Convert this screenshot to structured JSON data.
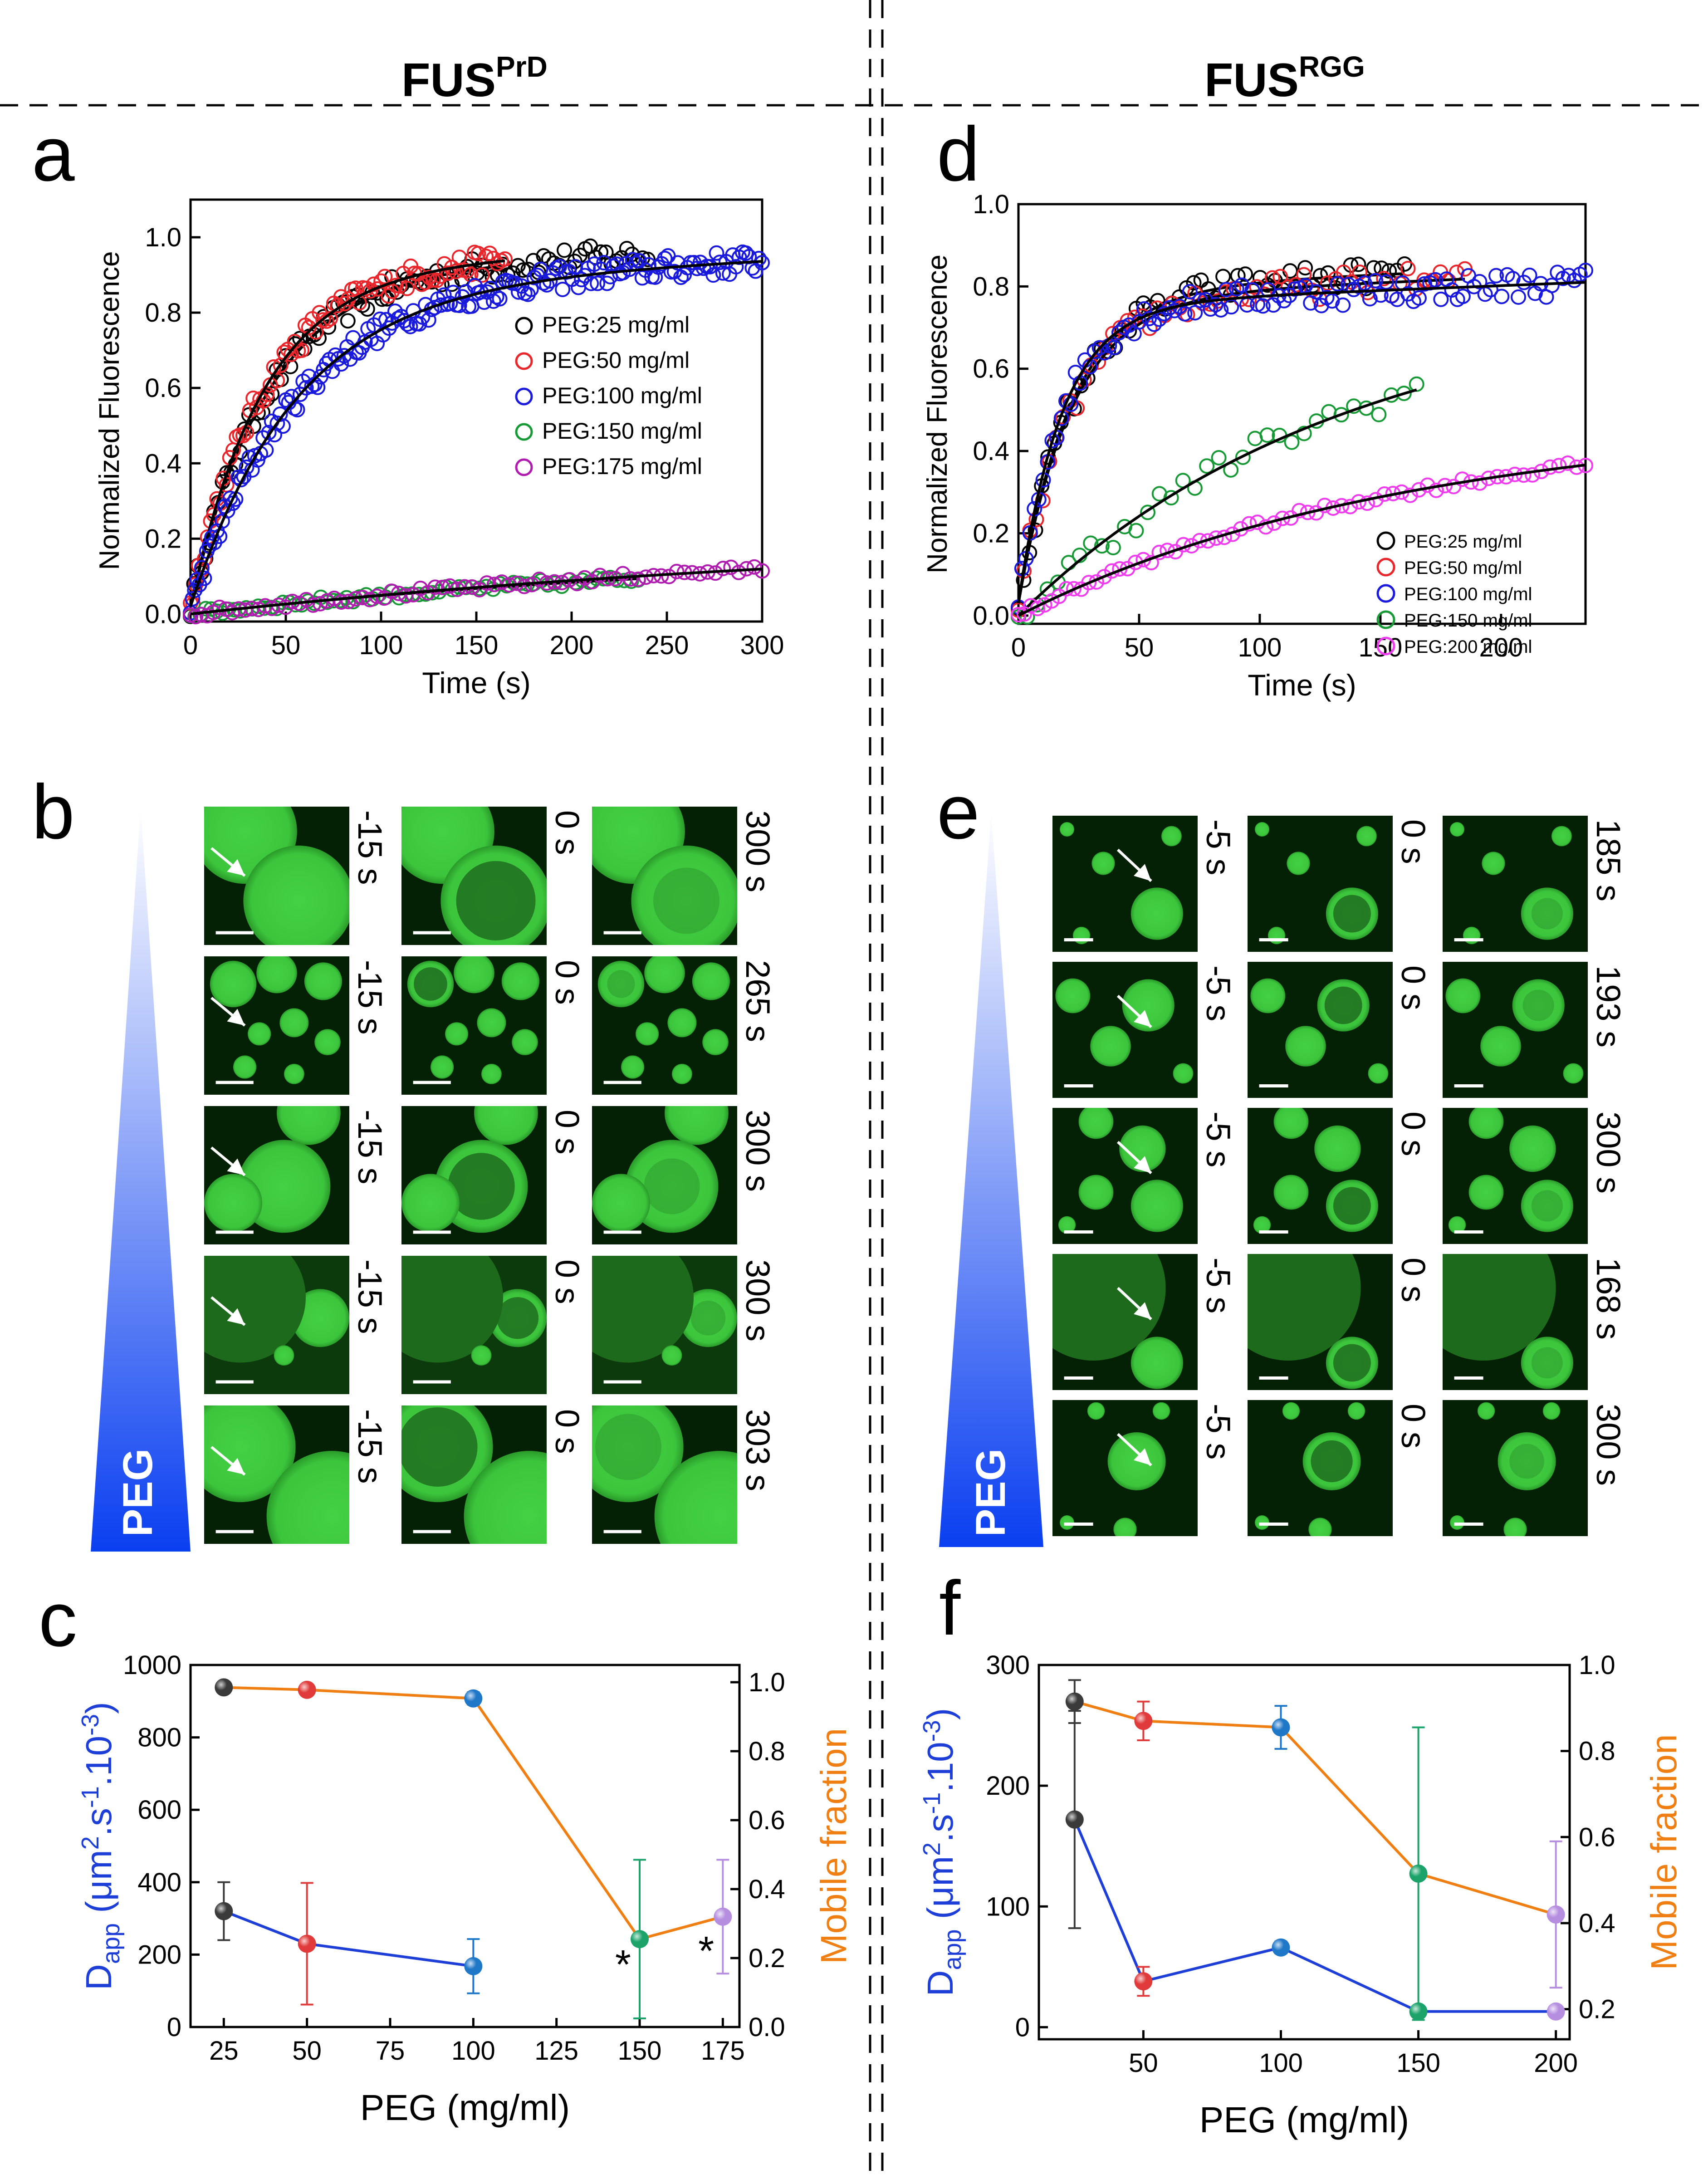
{
  "header": {
    "left_base": "FUS",
    "left_sup": "PrD",
    "right_base": "FUS",
    "right_sup": "RGG"
  },
  "panel_labels": {
    "a": "a",
    "b": "b",
    "c": "c",
    "d": "d",
    "e": "e",
    "f": "f"
  },
  "colors": {
    "black": "#000000",
    "red": "#e8262b",
    "blue": "#1a1adc",
    "green": "#179a35",
    "magenta_a": "#b01cb0",
    "magenta_d": "#ee3cee",
    "dapp_blue": "#1d3fd8",
    "mobile_orange": "#f07f13",
    "c_black": "#3a3a3a",
    "c_red": "#e03a3a",
    "c_blue": "#1f77c8",
    "c_green": "#1ba36a",
    "c_violet": "#b58ee0",
    "micro_green": "#3fd23f",
    "micro_bg": "#062606"
  },
  "chart_data": [
    {
      "id": "a",
      "type": "scatter",
      "xlabel": "Time (s)",
      "ylabel": "Normalized Fluorescence",
      "xlim": [
        0,
        300
      ],
      "ylim": [
        -0.02,
        1.1
      ],
      "xticks": [
        0,
        50,
        100,
        150,
        200,
        250,
        300
      ],
      "yticks": [
        0.0,
        0.2,
        0.4,
        0.6,
        0.8,
        1.0
      ],
      "xtick_labels": [
        "0",
        "50",
        "100",
        "150",
        "200",
        "250",
        "300"
      ],
      "ytick_labels": [
        "0.0",
        "0.2",
        "0.4",
        "0.6",
        "0.8",
        "1.0"
      ],
      "legend_position": "center-right",
      "series": [
        {
          "name": "PEG:25 mg/ml",
          "color": "#000000",
          "tmax": 240,
          "plateau": 0.95,
          "tau": 40,
          "offset": 0.02,
          "fit_end": 165,
          "points": 95
        },
        {
          "name": "PEG:50 mg/ml",
          "color": "#e8262b",
          "tmax": 165,
          "plateau": 0.96,
          "tau": 38,
          "offset": 0.02,
          "fit_end": 165,
          "points": 90
        },
        {
          "name": "PEG:100 mg/ml",
          "color": "#1a1adc",
          "tmax": 300,
          "plateau": 0.92,
          "tau": 55,
          "offset": 0.02,
          "fit_end": 300,
          "points": 190
        },
        {
          "name": "PEG:150 mg/ml",
          "color": "#179a35",
          "tmax": 235,
          "plateau": 0.16,
          "tau": 260,
          "offset": 0.0,
          "fit_end": 235,
          "points": 70
        },
        {
          "name": "PEG:175 mg/ml",
          "color": "#b01cb0",
          "tmax": 300,
          "plateau": 0.2,
          "tau": 330,
          "offset": 0.0,
          "fit_end": 300,
          "points": 80
        }
      ]
    },
    {
      "id": "d",
      "type": "scatter",
      "xlabel": "Time (s)",
      "ylabel": "Normalized Fluorescence",
      "xlim": [
        0,
        235
      ],
      "ylim": [
        -0.02,
        1.0
      ],
      "xticks": [
        0,
        50,
        100,
        150,
        200
      ],
      "yticks": [
        0.0,
        0.2,
        0.4,
        0.6,
        0.8,
        1.0
      ],
      "xtick_labels": [
        "0",
        "50",
        "100",
        "150",
        "200"
      ],
      "ytick_labels": [
        "0.0",
        "0.2",
        "0.4",
        "0.6",
        "0.8",
        "1.0"
      ],
      "legend_position": "bottom-right",
      "series": [
        {
          "name": "PEG:25 mg/ml",
          "color": "#000000",
          "tmax": 160,
          "plateau": 0.82,
          "tau": 22,
          "offset": 0.03,
          "fit_end": 160,
          "points": 55
        },
        {
          "name": "PEG:50 mg/ml",
          "color": "#e8262b",
          "tmax": 185,
          "plateau": 0.8,
          "tau": 22,
          "offset": 0.03,
          "fit_end": 185,
          "points": 60
        },
        {
          "name": "PEG:100 mg/ml",
          "color": "#1a1adc",
          "tmax": 235,
          "plateau": 0.78,
          "tau": 18,
          "offset": 0.03,
          "fit_end": 235,
          "points": 110
        },
        {
          "name": "PEG:150 mg/ml",
          "color": "#179a35",
          "tmax": 165,
          "plateau": 0.75,
          "tau": 120,
          "offset": 0.0,
          "fit_end": 165,
          "points": 35
        },
        {
          "name": "PEG:200 mg/ml",
          "color": "#ee3cee",
          "tmax": 235,
          "plateau": 0.45,
          "tau": 140,
          "offset": 0.0,
          "fit_end": 235,
          "points": 70
        }
      ]
    },
    {
      "id": "c",
      "type": "scatter",
      "xlabel": "PEG (mg/ml)",
      "ylabel_left_main": "D",
      "ylabel_left_sub": "app",
      "ylabel_left_units": "(μm",
      "ylabel_left_sup1": "2",
      "ylabel_left_mid": ".s",
      "ylabel_left_sup2": "-1",
      "ylabel_left_tail": ".10",
      "ylabel_left_sup3": "-3",
      "ylabel_left_close": ")",
      "ylabel_right": "Mobile fraction",
      "xlim": [
        15,
        180
      ],
      "ylim_left": [
        0,
        1000
      ],
      "ylim_right": [
        0,
        1.05
      ],
      "xticks": [
        25,
        50,
        75,
        100,
        125,
        150,
        175
      ],
      "xtick_labels": [
        "25",
        "50",
        "75",
        "100",
        "125",
        "150",
        "175"
      ],
      "yticks_left": [
        0,
        200,
        400,
        600,
        800,
        1000
      ],
      "ytick_labels_left": [
        "0",
        "200",
        "400",
        "600",
        "800",
        "1000"
      ],
      "yticks_right": [
        0.0,
        0.2,
        0.4,
        0.6,
        0.8,
        1.0
      ],
      "ytick_labels_right": [
        "0.0",
        "0.2",
        "0.4",
        "0.6",
        "0.8",
        "1.0"
      ],
      "dapp": {
        "x": [
          25,
          50,
          100
        ],
        "y": [
          320,
          230,
          168
        ],
        "err": [
          80,
          168,
          75
        ]
      },
      "mobile": {
        "x": [
          25,
          50,
          100,
          150,
          175
        ],
        "y": [
          0.985,
          0.978,
          0.953,
          0.255,
          0.32
        ],
        "err": [
          0.005,
          0.005,
          0.018,
          0.23,
          0.165
        ]
      },
      "point_colors": [
        "#3a3a3a",
        "#e03a3a",
        "#1f77c8",
        "#1ba36a",
        "#b58ee0"
      ],
      "annotations": [
        {
          "x": 145,
          "y": 0.18,
          "text": "*"
        },
        {
          "x": 170,
          "y": 0.22,
          "text": "*"
        }
      ]
    },
    {
      "id": "f",
      "type": "scatter",
      "xlabel": "PEG (mg/ml)",
      "ylabel_left_main": "D",
      "ylabel_left_sub": "app",
      "ylabel_left_units": "(μm",
      "ylabel_left_sup1": "2",
      "ylabel_left_mid": ".s",
      "ylabel_left_sup2": "-1",
      "ylabel_left_tail": ".10",
      "ylabel_left_sup3": "-3",
      "ylabel_left_close": ")",
      "ylabel_right": "Mobile fraction",
      "xlim": [
        12,
        205
      ],
      "ylim_left": [
        -10,
        300
      ],
      "ylim_right": [
        0.13,
        1.0
      ],
      "xticks": [
        50,
        100,
        150,
        200
      ],
      "xtick_labels": [
        "50",
        "100",
        "150",
        "200"
      ],
      "yticks_left": [
        0,
        100,
        200,
        300
      ],
      "ytick_labels_left": [
        "0",
        "100",
        "200",
        "300"
      ],
      "yticks_right": [
        0.2,
        0.4,
        0.6,
        0.8,
        1.0
      ],
      "ytick_labels_right": [
        "0.2",
        "0.4",
        "0.6",
        "0.8",
        "1.0"
      ],
      "dapp": {
        "x": [
          25,
          50,
          100,
          150,
          200
        ],
        "y": [
          172,
          38,
          66,
          13,
          13
        ],
        "err": [
          90,
          12,
          5,
          2,
          2
        ]
      },
      "mobile": {
        "x": [
          25,
          50,
          100,
          150,
          200
        ],
        "y": [
          0.915,
          0.87,
          0.855,
          0.515,
          0.42
        ],
        "err": [
          0.05,
          0.045,
          0.05,
          0.34,
          0.17
        ]
      },
      "point_colors": [
        "#3a3a3a",
        "#e03a3a",
        "#1f77c8",
        "#1ba36a",
        "#b58ee0"
      ]
    }
  ],
  "microscopy_b": {
    "gradient_label": "PEG",
    "rows": [
      {
        "times": [
          "-15 s",
          "0 s",
          "300 s"
        ]
      },
      {
        "times": [
          "-15 s",
          "0 s",
          "265 s"
        ]
      },
      {
        "times": [
          "-15 s",
          "0 s",
          "300 s"
        ]
      },
      {
        "times": [
          "-15 s",
          "0 s",
          "300 s"
        ]
      },
      {
        "times": [
          "-15 s",
          "0 s",
          "303 s"
        ]
      }
    ]
  },
  "microscopy_e": {
    "gradient_label": "PEG",
    "rows": [
      {
        "times": [
          "-5 s",
          "0 s",
          "185 s"
        ]
      },
      {
        "times": [
          "-5 s",
          "0 s",
          "193 s"
        ]
      },
      {
        "times": [
          "-5 s",
          "0 s",
          "300 s"
        ]
      },
      {
        "times": [
          "-5 s",
          "0 s",
          "168 s"
        ]
      },
      {
        "times": [
          "-5 s",
          "0 s",
          "300 s"
        ]
      }
    ]
  }
}
